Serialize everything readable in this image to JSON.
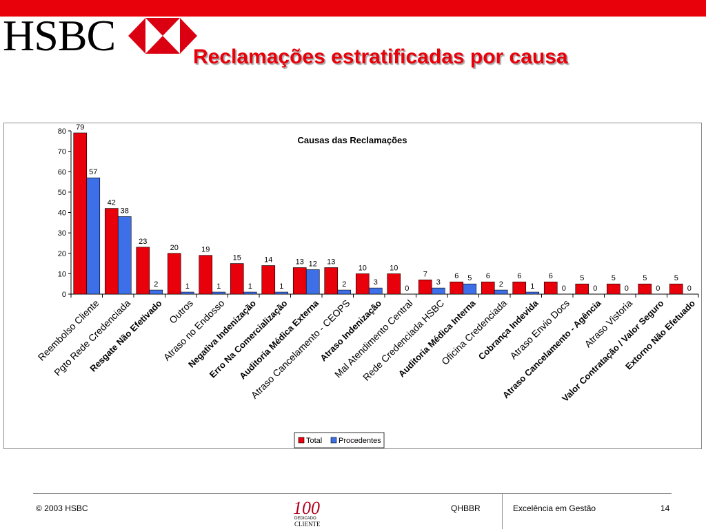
{
  "brand": {
    "logo_text": "HSBC",
    "topbar_color": "#e8000a",
    "logo_red": "#db0011"
  },
  "slide": {
    "title": "Reclamações estratificadas por causa",
    "title_color": "#e8000a"
  },
  "footer": {
    "copyright": "© 2003 HSBC",
    "code": "QHBBR",
    "tagline": "Excelência em Gestão",
    "page_number": "14",
    "badge_number": "100",
    "badge_line1": "DEDICADO",
    "badge_line2": "CLIENTE"
  },
  "chart_data": {
    "type": "bar",
    "title": "Causas das Reclamações",
    "ylim": [
      0,
      80
    ],
    "yticks": [
      0,
      10,
      20,
      30,
      40,
      50,
      60,
      70,
      80
    ],
    "grid": false,
    "legend_position": "bottom",
    "categories": [
      "Reembolso Cliente",
      "Pgto Rede Credenciada",
      "Resgate Não Efetivado",
      "Outros",
      "Atraso no Endosso",
      "Negativa Indenização",
      "Erro Na Comercialização",
      "Auditoria Médica Externa",
      "Atraso Cancelamento - CEOPS",
      "Atraso Indenização",
      "Mal Atendimento Central",
      "Rede Credenciada HSBC",
      "Auditoria Médica Interna",
      "Oficina Credenciada",
      "Cobrança Indevida",
      "Atraso Envio Docs",
      "Atraso Cancelamento - Agência",
      "Atraso Vistoria",
      "Valor Contratação / Valor Seguro",
      "Extorno Não Efetuado"
    ],
    "bold_categories": [
      2,
      5,
      6,
      7,
      9,
      12,
      14,
      16,
      18,
      19
    ],
    "series": [
      {
        "name": "Total",
        "color": "#e8000a",
        "values": [
          79,
          42,
          23,
          20,
          19,
          15,
          14,
          13,
          13,
          10,
          10,
          7,
          6,
          6,
          6,
          6,
          5,
          5,
          5,
          5
        ]
      },
      {
        "name": "Procedentes",
        "color": "#3d6fe8",
        "values": [
          57,
          38,
          2,
          1,
          1,
          1,
          1,
          12,
          2,
          3,
          0,
          3,
          5,
          2,
          1,
          0,
          0,
          0,
          0,
          0
        ]
      }
    ]
  }
}
